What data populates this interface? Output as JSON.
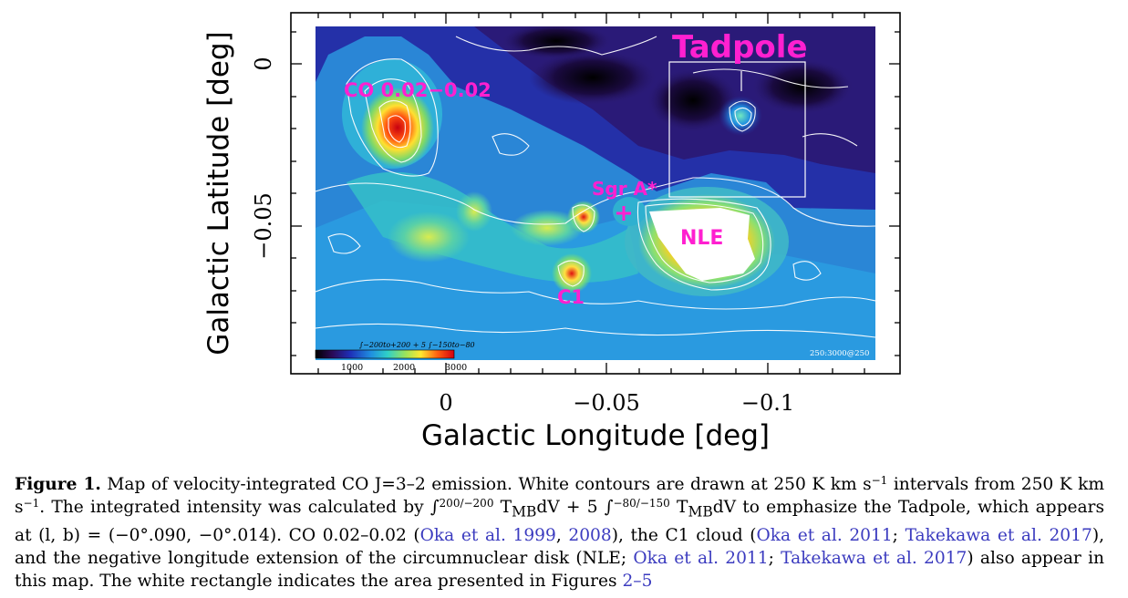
{
  "figure": {
    "x_axis_label": "Galactic Longitude [deg]",
    "y_axis_label": "Galactic Latitude [deg]",
    "x_ticks": [
      "0",
      "−0.05",
      "−0.1"
    ],
    "y_ticks": [
      "0",
      "−0.05"
    ],
    "labels": {
      "tadpole": "Tadpole",
      "co": "CO 0.02−0.02",
      "sgra": "Sgr A*",
      "nle": "NLE",
      "c1": "C1"
    },
    "colorbar": {
      "title": "∫−200to+200 + 5 ∫−150to−80",
      "ticks": [
        "1000",
        "2000",
        "3000"
      ],
      "corner_note": "250:3000@250"
    }
  },
  "caption": {
    "lead": "Figure 1.",
    "p1": " Map of velocity-integrated CO J=3–2 emission. White contours are drawn at 250 K km s",
    "sup1": "−1",
    "p2": " intervals from 250 K km s",
    "sup2": "−1",
    "p3": ". The integrated intensity was calculated by ∫",
    "int1_range": "200/−200",
    "p4": " T",
    "tmb_sub": "MB",
    "p5": "dV + 5 ∫",
    "int2_range": "−80/−150",
    "p6": " T",
    "tmb_sub2": "MB",
    "p7": "dV to emphasize the Tadpole, which appears at (l, b) = (−0°.090, −0°.014). CO 0.02–0.02 (",
    "c1": "Oka et al. 1999",
    "s1": ", ",
    "c2": "2008",
    "p8": "), the C1 cloud (",
    "c3": "Oka et al. 2011",
    "s2": "; ",
    "c4": "Takekawa et al. 2017",
    "p9": "), and the negative longitude extension of the circumnuclear disk (NLE; ",
    "c5": "Oka et al. 2011",
    "s3": "; ",
    "c6": "Takekawa et al. 2017",
    "p10": ") also appear in this map. The white rectangle indicates the area presented in Figures ",
    "c7": "2–5"
  }
}
